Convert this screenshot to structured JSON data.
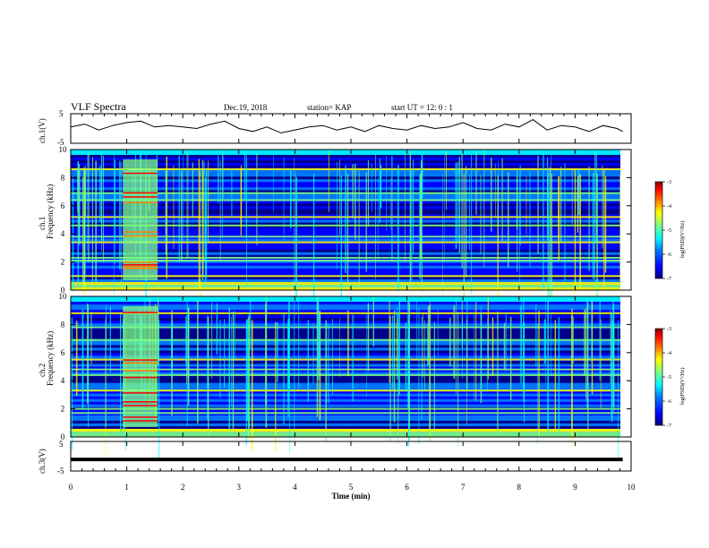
{
  "header": {
    "title": "VLF Spectra",
    "date": "Dec.19, 2018",
    "station": "station= KAP",
    "start": "start  UT =   12: 0  : 1"
  },
  "chart_data": [
    {
      "type": "line",
      "name": "ch1-waveform",
      "ylabel": "ch.1(V)",
      "ylim": [
        -5,
        5
      ],
      "yticks": [
        "5",
        "-5"
      ],
      "xlim": [
        0,
        10
      ],
      "x": [
        0,
        0.25,
        0.5,
        0.75,
        1.0,
        1.25,
        1.5,
        1.75,
        2.0,
        2.25,
        2.5,
        2.75,
        3.0,
        3.25,
        3.5,
        3.75,
        4.0,
        4.25,
        4.5,
        4.75,
        5.0,
        5.25,
        5.5,
        5.75,
        6.0,
        6.25,
        6.5,
        6.75,
        7.0,
        7.25,
        7.5,
        7.75,
        8.0,
        8.25,
        8.5,
        8.75,
        9.0,
        9.25,
        9.5,
        9.75,
        9.85
      ],
      "y": [
        0.5,
        1.5,
        -0.5,
        1.0,
        2.0,
        2.5,
        0.5,
        1.0,
        0.5,
        0.0,
        1.5,
        2.5,
        0.0,
        -1.0,
        0.5,
        -1.5,
        -0.5,
        0.5,
        1.0,
        -0.5,
        0.5,
        -1.0,
        1.0,
        0.0,
        -0.5,
        1.0,
        0.0,
        0.5,
        2.0,
        0.0,
        -0.5,
        1.5,
        0.5,
        3.0,
        -0.5,
        1.0,
        0.5,
        -1.0,
        1.0,
        0.0,
        -1.0
      ]
    },
    {
      "type": "heatmap",
      "name": "ch1-spectrogram",
      "ylabel": "ch.1",
      "ylabel2": "Frequency  (kHz)",
      "yticks": [
        "0",
        "2",
        "4",
        "6",
        "8",
        "10"
      ],
      "ylim": [
        0,
        10
      ],
      "xlim": [
        0,
        10
      ],
      "colorbar": {
        "label": "log(PSD)(V²/Hz)",
        "ticks": [
          "-3",
          "-4",
          "-5",
          "-6",
          "-7"
        ],
        "range": [
          -7,
          -3
        ]
      }
    },
    {
      "type": "heatmap",
      "name": "ch2-spectrogram",
      "ylabel": "ch.2",
      "ylabel2": "Frequency  (kHz)",
      "yticks": [
        "0",
        "2",
        "4",
        "6",
        "8",
        "10"
      ],
      "ylim": [
        0,
        10
      ],
      "xlim": [
        0,
        10
      ],
      "colorbar": {
        "label": "log(PSD)(V²/Hz)",
        "ticks": [
          "-3",
          "-4",
          "-5",
          "-6",
          "-7"
        ],
        "range": [
          -7,
          -3
        ]
      }
    },
    {
      "type": "line",
      "name": "ch3-waveform",
      "ylabel": "ch.3(V)",
      "ylim": [
        -5,
        5
      ],
      "yticks": [
        "5",
        "-5"
      ],
      "xlim": [
        0,
        10
      ],
      "x": [
        0,
        9.85
      ],
      "y": [
        -1.1,
        -1.1
      ]
    }
  ],
  "xaxis": {
    "label": "Time  (min)",
    "ticks": [
      "0",
      "1",
      "2",
      "3",
      "4",
      "5",
      "6",
      "7",
      "8",
      "9",
      "10"
    ]
  },
  "colors": {
    "colormap": [
      "#000080",
      "#0000ff",
      "#0080ff",
      "#00ffff",
      "#80ff80",
      "#ffff00",
      "#ff8000",
      "#ff0000",
      "#800000"
    ],
    "line": "#000000",
    "background": "#ffffff"
  }
}
